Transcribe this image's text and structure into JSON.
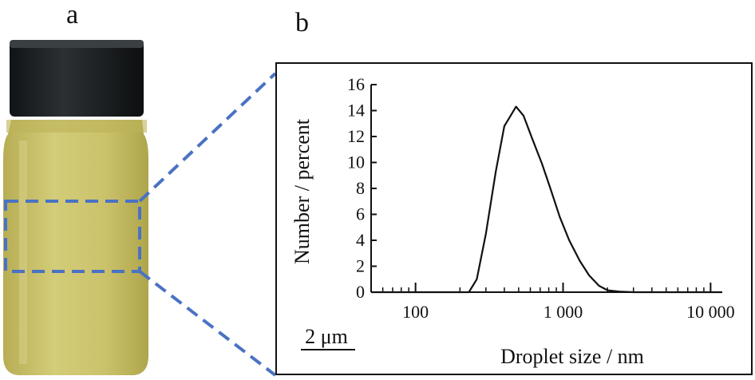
{
  "panels": {
    "a": "a",
    "b": "b"
  },
  "scale_bar": {
    "label": "2 μm"
  },
  "colors": {
    "highlight": "#4a72c4",
    "liquid": "#c9c26a",
    "cap": "#1e2224",
    "curve": "#111111"
  },
  "chart_data": {
    "type": "line",
    "xlabel": "Droplet size / nm",
    "ylabel": "Number  / percent",
    "x_scale": "log",
    "xlim": [
      50,
      12000
    ],
    "ylim": [
      0,
      16
    ],
    "x_ticks": [
      100,
      1000,
      10000
    ],
    "x_tick_labels": [
      "100",
      "1 000",
      "10 000"
    ],
    "y_ticks": [
      0,
      2,
      4,
      6,
      8,
      10,
      12,
      14,
      16
    ],
    "y_tick_labels": [
      "0",
      "2",
      "4",
      "6",
      "8",
      "10",
      "12",
      "14",
      "16"
    ],
    "grid": false,
    "series": [
      {
        "x": [
          230,
          260,
          300,
          350,
          400,
          480,
          540,
          620,
          720,
          820,
          950,
          1100,
          1300,
          1500,
          1750,
          2000,
          2400,
          3000
        ],
        "y": [
          0,
          1.0,
          4.5,
          9.3,
          12.8,
          14.3,
          13.6,
          11.8,
          9.9,
          8.0,
          5.8,
          4.0,
          2.4,
          1.3,
          0.5,
          0.15,
          0.05,
          0
        ]
      }
    ]
  }
}
